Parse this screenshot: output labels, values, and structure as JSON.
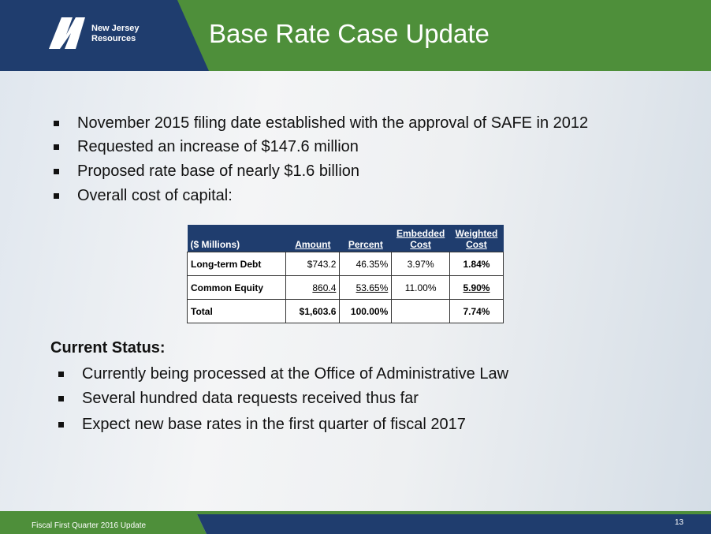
{
  "header": {
    "logo": [
      "New Jersey",
      "Resources"
    ],
    "title": "Base Rate Case Update"
  },
  "bullets": [
    "November 2015 filing date established with the approval of SAFE in 2012",
    "Requested an increase of $147.6 million",
    "Proposed rate base of nearly $1.6 billion",
    "Overall cost of capital:"
  ],
  "table": {
    "columns": [
      "($ Millions)",
      "Amount",
      "Percent",
      "Embedded Cost",
      "Weighted Cost"
    ],
    "rows": [
      [
        "Long-term Debt",
        "$743.2",
        "46.35%",
        "3.97%",
        "1.84%"
      ],
      [
        "Common Equity",
        "860.4",
        "53.65%",
        "11.00%",
        "5.90%"
      ],
      [
        "Total",
        "$1,603.6",
        "100.00%",
        null,
        "7.74%"
      ]
    ]
  },
  "status": {
    "heading": "Current Status:",
    "bullets": [
      "Currently being processed at the Office of Administrative Law",
      "Several hundred data requests received thus far",
      "Expect new base rates in the first quarter of fiscal 2017"
    ]
  },
  "footer": {
    "text": "Fiscal First Quarter 2016 Update",
    "page": 13
  }
}
